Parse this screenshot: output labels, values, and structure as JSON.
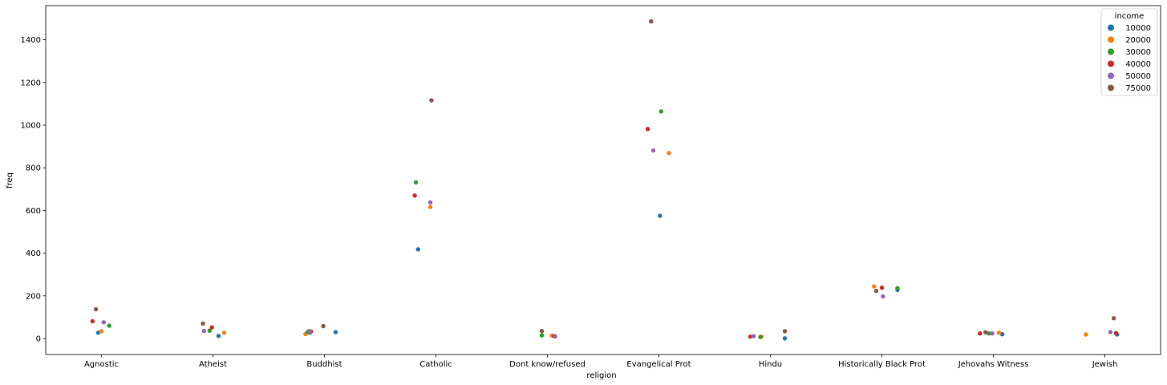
{
  "chart_data": {
    "type": "scatter",
    "xlabel": "religion",
    "ylabel": "freq",
    "ylim": [
      -75,
      1560
    ],
    "yticks": [
      0,
      200,
      400,
      600,
      800,
      1000,
      1200,
      1400
    ],
    "categories": [
      "Agnostic",
      "Atheist",
      "Buddhist",
      "Catholic",
      "Dont know/refused",
      "Evangelical Prot",
      "Hindu",
      "Historically Black Prot",
      "Jehovahs Witness",
      "Jewish"
    ],
    "grid": false,
    "legend": {
      "title": "income",
      "placement": "top-right"
    },
    "series": [
      {
        "name": "10000",
        "color": "#1f77b4",
        "points": [
          {
            "category": "Agnostic",
            "y": 27,
            "jitter": -0.03
          },
          {
            "category": "Atheist",
            "y": 12,
            "jitter": 0.05
          },
          {
            "category": "Buddhist",
            "y": 27,
            "jitter": -0.13
          },
          {
            "category": "Buddhist",
            "y": 30,
            "jitter": 0.1
          },
          {
            "category": "Catholic",
            "y": 418,
            "jitter": -0.16
          },
          {
            "category": "Dont know/refused",
            "y": 15,
            "jitter": -0.05
          },
          {
            "category": "Evangelical Prot",
            "y": 575,
            "jitter": 0.01
          },
          {
            "category": "Hindu",
            "y": 1,
            "jitter": 0.13
          },
          {
            "category": "Historically Black Prot",
            "y": 228,
            "jitter": 0.14
          },
          {
            "category": "Jehovahs Witness",
            "y": 20,
            "jitter": 0.08
          },
          {
            "category": "Jewish",
            "y": 19,
            "jitter": 0.11
          }
        ]
      },
      {
        "name": "20000",
        "color": "#ff7f0e",
        "points": [
          {
            "category": "Agnostic",
            "y": 34,
            "jitter": 0.0
          },
          {
            "category": "Atheist",
            "y": 27,
            "jitter": 0.1
          },
          {
            "category": "Buddhist",
            "y": 21,
            "jitter": -0.17
          },
          {
            "category": "Catholic",
            "y": 617,
            "jitter": -0.05
          },
          {
            "category": "Dont know/refused",
            "y": 14,
            "jitter": 0.04
          },
          {
            "category": "Evangelical Prot",
            "y": 869,
            "jitter": 0.09
          },
          {
            "category": "Hindu",
            "y": 9,
            "jitter": -0.08
          },
          {
            "category": "Historically Black Prot",
            "y": 244,
            "jitter": -0.07
          },
          {
            "category": "Jehovahs Witness",
            "y": 27,
            "jitter": 0.05
          },
          {
            "category": "Jewish",
            "y": 19,
            "jitter": -0.17
          }
        ]
      },
      {
        "name": "30000",
        "color": "#2ca02c",
        "points": [
          {
            "category": "Agnostic",
            "y": 60,
            "jitter": 0.07
          },
          {
            "category": "Atheist",
            "y": 37,
            "jitter": -0.03
          },
          {
            "category": "Buddhist",
            "y": 30,
            "jitter": -0.15
          },
          {
            "category": "Buddhist",
            "y": 34,
            "jitter": -0.14
          },
          {
            "category": "Catholic",
            "y": 732,
            "jitter": -0.18
          },
          {
            "category": "Dont know/refused",
            "y": 15,
            "jitter": -0.05
          },
          {
            "category": "Evangelical Prot",
            "y": 1064,
            "jitter": 0.02
          },
          {
            "category": "Hindu",
            "y": 7,
            "jitter": -0.09
          },
          {
            "category": "Historically Black Prot",
            "y": 236,
            "jitter": 0.14
          },
          {
            "category": "Jehovahs Witness",
            "y": 24,
            "jitter": -0.04
          },
          {
            "category": "Jewish",
            "y": 25,
            "jitter": 0.1
          }
        ]
      },
      {
        "name": "40000",
        "color": "#d62728",
        "points": [
          {
            "category": "Agnostic",
            "y": 81,
            "jitter": -0.08
          },
          {
            "category": "Atheist",
            "y": 52,
            "jitter": -0.01
          },
          {
            "category": "Buddhist",
            "y": 33,
            "jitter": -0.12
          },
          {
            "category": "Catholic",
            "y": 670,
            "jitter": -0.19
          },
          {
            "category": "Dont know/refused",
            "y": 11,
            "jitter": 0.06
          },
          {
            "category": "Evangelical Prot",
            "y": 982,
            "jitter": -0.1
          },
          {
            "category": "Hindu",
            "y": 9,
            "jitter": -0.18
          },
          {
            "category": "Historically Black Prot",
            "y": 238,
            "jitter": 0.0
          },
          {
            "category": "Jehovahs Witness",
            "y": 24,
            "jitter": -0.12
          },
          {
            "category": "Jewish",
            "y": 25,
            "jitter": 0.1
          }
        ]
      },
      {
        "name": "50000",
        "color": "#9467bd",
        "points": [
          {
            "category": "Agnostic",
            "y": 76,
            "jitter": 0.02
          },
          {
            "category": "Atheist",
            "y": 35,
            "jitter": -0.08
          },
          {
            "category": "Buddhist",
            "y": 32,
            "jitter": -0.13
          },
          {
            "category": "Catholic",
            "y": 638,
            "jitter": -0.05
          },
          {
            "category": "Dont know/refused",
            "y": 10,
            "jitter": 0.07
          },
          {
            "category": "Evangelical Prot",
            "y": 881,
            "jitter": -0.05
          },
          {
            "category": "Hindu",
            "y": 11,
            "jitter": -0.15
          },
          {
            "category": "Historically Black Prot",
            "y": 197,
            "jitter": 0.01
          },
          {
            "category": "Jehovahs Witness",
            "y": 24,
            "jitter": -0.01
          },
          {
            "category": "Jewish",
            "y": 30,
            "jitter": 0.05
          }
        ]
      },
      {
        "name": "75000",
        "color": "#8c564b",
        "points": [
          {
            "category": "Agnostic",
            "y": 137,
            "jitter": -0.05
          },
          {
            "category": "Atheist",
            "y": 70,
            "jitter": -0.09
          },
          {
            "category": "Buddhist",
            "y": 58,
            "jitter": -0.01
          },
          {
            "category": "Catholic",
            "y": 1116,
            "jitter": -0.04
          },
          {
            "category": "Dont know/refused",
            "y": 35,
            "jitter": -0.05
          },
          {
            "category": "Evangelical Prot",
            "y": 1486,
            "jitter": -0.07
          },
          {
            "category": "Hindu",
            "y": 34,
            "jitter": 0.13
          },
          {
            "category": "Historically Black Prot",
            "y": 223,
            "jitter": -0.05
          },
          {
            "category": "Jehovahs Witness",
            "y": 29,
            "jitter": -0.07
          },
          {
            "category": "Jewish",
            "y": 95,
            "jitter": 0.08
          }
        ]
      }
    ]
  }
}
